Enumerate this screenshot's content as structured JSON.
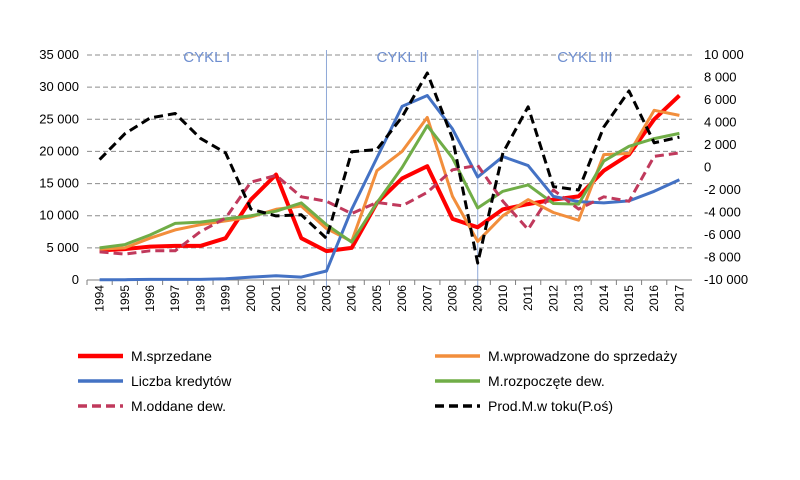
{
  "chart_data": {
    "type": "line",
    "categories": [
      "1994",
      "1995",
      "1996",
      "1997",
      "1998",
      "1999",
      "2000",
      "2001",
      "2002",
      "2003",
      "2004",
      "2005",
      "2006",
      "2007",
      "2008",
      "2009",
      "2010",
      "2011",
      "2012",
      "2013",
      "2014",
      "2015",
      "2016",
      "2017"
    ],
    "y_left": {
      "ylim": [
        0,
        35000
      ],
      "ticks": [
        0,
        5000,
        10000,
        15000,
        20000,
        25000,
        30000,
        35000
      ],
      "tick_labels": [
        "0",
        "5 000",
        "10 000",
        "15 000",
        "20 000",
        "25 000",
        "30 000",
        "35 000"
      ]
    },
    "y_right": {
      "ylim": [
        -10000,
        10000
      ],
      "ticks": [
        -10000,
        -8000,
        -6000,
        -4000,
        -2000,
        0,
        2000,
        4000,
        6000,
        8000,
        10000
      ],
      "tick_labels": [
        "-10 000",
        "-8 000",
        "-6 000",
        "-4 000",
        "-2 000",
        "0",
        "2 000",
        "4 000",
        "6 000",
        "8 000",
        "10 000"
      ]
    },
    "grid": "horizontal dashed",
    "legend_position": "bottom",
    "cycles": [
      {
        "label": "CYKL I",
        "start": "1994",
        "end": "2003"
      },
      {
        "label": "CYKL II",
        "start": "2003",
        "end": "2009"
      },
      {
        "label": "CYKL III",
        "start": "2009",
        "end": "2017"
      }
    ],
    "series": [
      {
        "name": "M.sprzedane",
        "axis": "left",
        "color": "#ff0000",
        "dash": "solid",
        "width": 4,
        "values": [
          4600,
          4800,
          5200,
          5300,
          5300,
          6500,
          12500,
          16400,
          6500,
          4500,
          5000,
          12000,
          15800,
          17700,
          9500,
          8200,
          11000,
          11800,
          12500,
          13000,
          17000,
          19500,
          25000,
          28700
        ]
      },
      {
        "name": "M.wprowadzone do sprzedaży",
        "axis": "left",
        "color": "#f28e3c",
        "dash": "solid",
        "width": 3,
        "values": [
          4800,
          5000,
          6500,
          7800,
          8600,
          9200,
          9800,
          11000,
          11500,
          8000,
          6000,
          17000,
          20000,
          25300,
          13000,
          6000,
          10000,
          12500,
          10500,
          9300,
          19500,
          19700,
          26400,
          25600
        ]
      },
      {
        "name": "Liczba kredytów",
        "axis": "left",
        "color": "#4472c4",
        "dash": "solid",
        "width": 3,
        "values": [
          50,
          50,
          100,
          100,
          100,
          200,
          450,
          650,
          450,
          1400,
          11000,
          19000,
          27000,
          28700,
          23500,
          16000,
          19200,
          17800,
          13000,
          12200,
          12000,
          12300,
          13800,
          15600
        ]
      },
      {
        "name": "M.rozpoczęte dew.",
        "axis": "left",
        "color": "#70ad47",
        "dash": "solid",
        "width": 3,
        "values": [
          5000,
          5500,
          7000,
          8800,
          9000,
          9500,
          10000,
          10700,
          12000,
          8600,
          5900,
          12000,
          17500,
          24000,
          19000,
          11200,
          13800,
          14800,
          11900,
          11800,
          18500,
          20800,
          22000,
          22800
        ]
      },
      {
        "name": "M.oddane dew.",
        "axis": "right",
        "color": "#c0395c",
        "dash": "dashed",
        "width": 3,
        "values": [
          -7500,
          -7700,
          -7400,
          -7400,
          -5700,
          -4500,
          -1300,
          -700,
          -2600,
          -3000,
          -4100,
          -3100,
          -3400,
          -2200,
          -200,
          200,
          -3000,
          -5500,
          -2000,
          -3700,
          -2600,
          -3000,
          1000,
          1300
        ]
      },
      {
        "name": "Prod.M.w toku(P.oś)",
        "axis": "right",
        "color": "#000000",
        "dash": "dashed",
        "width": 3,
        "values": [
          700,
          3000,
          4400,
          4800,
          2600,
          1300,
          -3700,
          -4300,
          -4200,
          -6300,
          1400,
          1600,
          4500,
          8400,
          2600,
          -8500,
          1300,
          5400,
          -1700,
          -2000,
          3600,
          6800,
          2200,
          2700
        ]
      }
    ]
  }
}
